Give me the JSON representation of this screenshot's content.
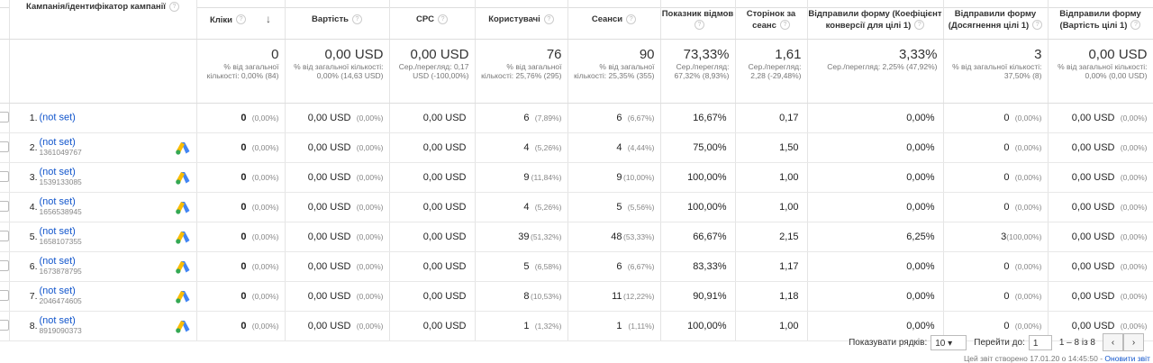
{
  "header": {
    "campaign": "Кампанія/ідентифікатор кампанії",
    "columns": [
      "Кліки",
      "Вартість",
      "CPC",
      "Користувачі",
      "Сеанси",
      "Показник відмов",
      "Сторінок за сеанс",
      "Відправили форму (Коефіцієнт конверсії для цілі 1)",
      "Відправили форму (Досягнення цілі 1)",
      "Відправили форму (Вартість цілі 1)"
    ]
  },
  "totals": [
    {
      "value": "0",
      "note": "% від загальної кількості: 0,00% (84)"
    },
    {
      "value": "0,00 USD",
      "note": "% від загальної кількості: 0,00% (14,63 USD)"
    },
    {
      "value": "0,00 USD",
      "note": "Сер./перегляд: 0,17 USD (-100,00%)"
    },
    {
      "value": "76",
      "note": "% від загальної кількості: 25,76% (295)"
    },
    {
      "value": "90",
      "note": "% від загальної кількості: 25,35% (355)"
    },
    {
      "value": "73,33%",
      "note": "Сер./перегляд: 67,32% (8,93%)"
    },
    {
      "value": "1,61",
      "note": "Сер./перегляд: 2,28 (-29,48%)"
    },
    {
      "value": "3,33%",
      "note": "Сер./перегляд: 2,25% (47,92%)"
    },
    {
      "value": "3",
      "note": "% від загальної кількості: 37,50% (8)"
    },
    {
      "value": "0,00 USD",
      "note": "% від загальної кількості: 0,00% (0,00 USD)"
    }
  ],
  "rows": [
    {
      "index": "1.",
      "campaign": "(not set)",
      "cells": [
        [
          "0",
          "(0,00%)"
        ],
        [
          "0,00 USD",
          "(0,00%)"
        ],
        [
          "0,00 USD"
        ],
        [
          "6",
          "(7,89%)"
        ],
        [
          "6",
          "(6,67%)"
        ],
        [
          "16,67%"
        ],
        [
          "0,17"
        ],
        [
          "0,00%"
        ],
        [
          "0",
          "(0,00%)"
        ],
        [
          "0,00 USD",
          "(0,00%)"
        ]
      ]
    },
    {
      "index": "2.",
      "campaign": "(not set)",
      "id": "1361049767",
      "cells": [
        [
          "0",
          "(0,00%)"
        ],
        [
          "0,00 USD",
          "(0,00%)"
        ],
        [
          "0,00 USD"
        ],
        [
          "4",
          "(5,26%)"
        ],
        [
          "4",
          "(4,44%)"
        ],
        [
          "75,00%"
        ],
        [
          "1,50"
        ],
        [
          "0,00%"
        ],
        [
          "0",
          "(0,00%)"
        ],
        [
          "0,00 USD",
          "(0,00%)"
        ]
      ]
    },
    {
      "index": "3.",
      "campaign": "(not set)",
      "id": "1539133085",
      "cells": [
        [
          "0",
          "(0,00%)"
        ],
        [
          "0,00 USD",
          "(0,00%)"
        ],
        [
          "0,00 USD"
        ],
        [
          "9",
          "(11,84%)"
        ],
        [
          "9",
          "(10,00%)"
        ],
        [
          "100,00%"
        ],
        [
          "1,00"
        ],
        [
          "0,00%"
        ],
        [
          "0",
          "(0,00%)"
        ],
        [
          "0,00 USD",
          "(0,00%)"
        ]
      ]
    },
    {
      "index": "4.",
      "campaign": "(not set)",
      "id": "1656538945",
      "cells": [
        [
          "0",
          "(0,00%)"
        ],
        [
          "0,00 USD",
          "(0,00%)"
        ],
        [
          "0,00 USD"
        ],
        [
          "4",
          "(5,26%)"
        ],
        [
          "5",
          "(5,56%)"
        ],
        [
          "100,00%"
        ],
        [
          "1,00"
        ],
        [
          "0,00%"
        ],
        [
          "0",
          "(0,00%)"
        ],
        [
          "0,00 USD",
          "(0,00%)"
        ]
      ]
    },
    {
      "index": "5.",
      "campaign": "(not set)",
      "id": "1658107355",
      "cells": [
        [
          "0",
          "(0,00%)"
        ],
        [
          "0,00 USD",
          "(0,00%)"
        ],
        [
          "0,00 USD"
        ],
        [
          "39",
          "(51,32%)"
        ],
        [
          "48",
          "(53,33%)"
        ],
        [
          "66,67%"
        ],
        [
          "2,15"
        ],
        [
          "6,25%"
        ],
        [
          "3",
          "(100,00%)"
        ],
        [
          "0,00 USD",
          "(0,00%)"
        ]
      ]
    },
    {
      "index": "6.",
      "campaign": "(not set)",
      "id": "1673878795",
      "cells": [
        [
          "0",
          "(0,00%)"
        ],
        [
          "0,00 USD",
          "(0,00%)"
        ],
        [
          "0,00 USD"
        ],
        [
          "5",
          "(6,58%)"
        ],
        [
          "6",
          "(6,67%)"
        ],
        [
          "83,33%"
        ],
        [
          "1,17"
        ],
        [
          "0,00%"
        ],
        [
          "0",
          "(0,00%)"
        ],
        [
          "0,00 USD",
          "(0,00%)"
        ]
      ]
    },
    {
      "index": "7.",
      "campaign": "(not set)",
      "id": "2046474605",
      "cells": [
        [
          "0",
          "(0,00%)"
        ],
        [
          "0,00 USD",
          "(0,00%)"
        ],
        [
          "0,00 USD"
        ],
        [
          "8",
          "(10,53%)"
        ],
        [
          "11",
          "(12,22%)"
        ],
        [
          "90,91%"
        ],
        [
          "1,18"
        ],
        [
          "0,00%"
        ],
        [
          "0",
          "(0,00%)"
        ],
        [
          "0,00 USD",
          "(0,00%)"
        ]
      ]
    },
    {
      "index": "8.",
      "campaign": "(not set)",
      "id": "8919090373",
      "cells": [
        [
          "0",
          "(0,00%)"
        ],
        [
          "0,00 USD",
          "(0,00%)"
        ],
        [
          "0,00 USD"
        ],
        [
          "1",
          "(1,32%)"
        ],
        [
          "1",
          "(1,11%)"
        ],
        [
          "100,00%"
        ],
        [
          "1,00"
        ],
        [
          "0,00%"
        ],
        [
          "0",
          "(0,00%)"
        ],
        [
          "0,00 USD",
          "(0,00%)"
        ]
      ]
    }
  ],
  "footer": {
    "rows_label": "Показувати рядків:",
    "rows_value": "10",
    "goto_label": "Перейти до:",
    "goto_value": "1",
    "range": "1 – 8 із 8",
    "generated": "Цей звіт створено 17.01.20 о 14:45:50 -",
    "refresh": "Оновити звіт"
  }
}
